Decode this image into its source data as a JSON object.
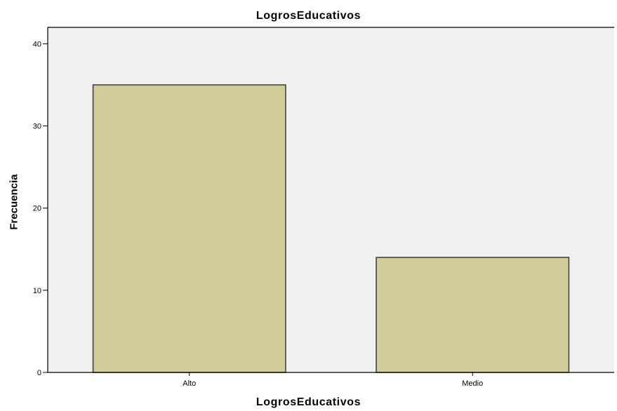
{
  "chart_data": {
    "type": "bar",
    "title": "LogrosEducativos",
    "xlabel": "LogrosEducativos",
    "ylabel": "Frecuencia",
    "categories": [
      "Alto",
      "Medio"
    ],
    "values": [
      35,
      14
    ],
    "ylim": [
      0,
      42
    ],
    "yticks": [
      0,
      10,
      20,
      30,
      40
    ],
    "grid": false,
    "colors": {
      "plot_bg": "#f0f0f0",
      "bar_fill": "#d3cc98",
      "bar_stroke": "#3a3a3a"
    }
  }
}
